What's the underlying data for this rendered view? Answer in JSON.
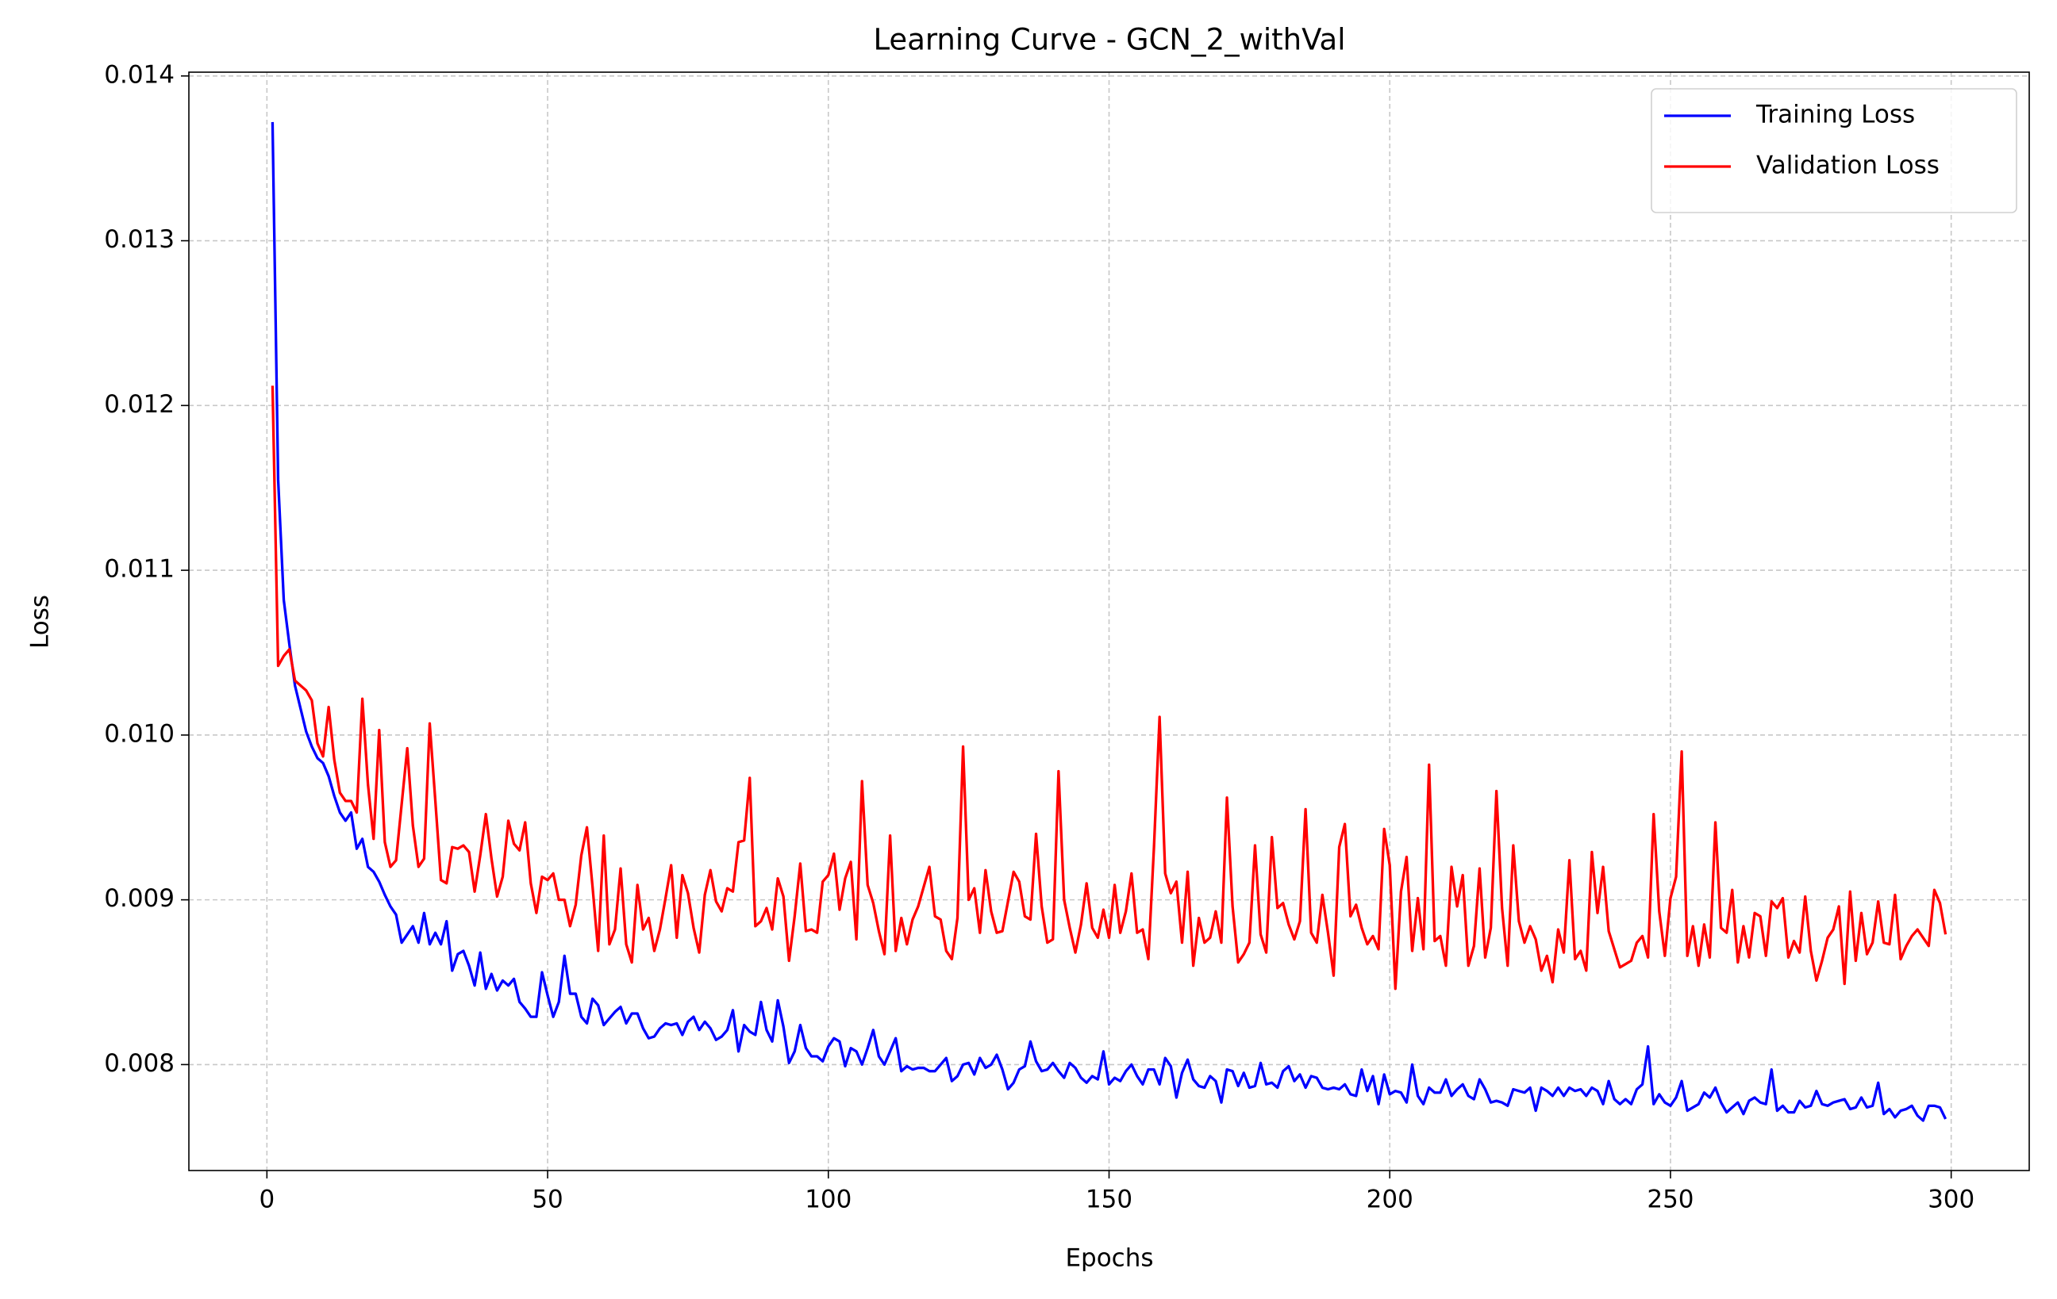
{
  "chart_data": {
    "type": "line",
    "title": "Learning Curve - GCN_2_withVal",
    "xlabel": "Epochs",
    "ylabel": "Loss",
    "x": [
      1,
      2,
      3,
      4,
      5,
      6,
      7,
      8,
      9,
      10,
      11,
      12,
      13,
      14,
      15,
      16,
      17,
      18,
      19,
      20,
      21,
      22,
      23,
      24,
      25,
      26,
      27,
      28,
      29,
      30,
      31,
      32,
      33,
      34,
      35,
      36,
      37,
      38,
      39,
      40,
      41,
      42,
      43,
      44,
      45,
      46,
      47,
      48,
      49,
      50,
      51,
      52,
      53,
      54,
      55,
      56,
      57,
      58,
      59,
      60,
      61,
      62,
      63,
      64,
      65,
      66,
      67,
      68,
      69,
      70,
      71,
      72,
      73,
      74,
      75,
      76,
      77,
      78,
      79,
      80,
      81,
      82,
      83,
      84,
      85,
      86,
      87,
      88,
      89,
      90,
      91,
      92,
      93,
      94,
      95,
      96,
      97,
      98,
      99,
      100,
      101,
      102,
      103,
      104,
      105,
      106,
      107,
      108,
      109,
      110,
      111,
      112,
      113,
      114,
      115,
      116,
      117,
      118,
      119,
      120,
      121,
      122,
      123,
      124,
      125,
      126,
      127,
      128,
      129,
      130,
      131,
      132,
      133,
      134,
      135,
      136,
      137,
      138,
      139,
      140,
      141,
      142,
      143,
      144,
      145,
      146,
      147,
      148,
      149,
      150,
      151,
      152,
      153,
      154,
      155,
      156,
      157,
      158,
      159,
      160,
      161,
      162,
      163,
      164,
      165,
      166,
      167,
      168,
      169,
      170,
      171,
      172,
      173,
      174,
      175,
      176,
      177,
      178,
      179,
      180,
      181,
      182,
      183,
      184,
      185,
      186,
      187,
      188,
      189,
      190,
      191,
      192,
      193,
      194,
      195,
      196,
      197,
      198,
      199,
      200,
      201,
      202,
      203,
      204,
      205,
      206,
      207,
      208,
      209,
      210,
      211,
      212,
      213,
      214,
      215,
      216,
      217,
      218,
      219,
      220,
      221,
      222,
      223,
      224,
      225,
      226,
      227,
      228,
      229,
      230,
      231,
      232,
      233,
      234,
      235,
      236,
      237,
      238,
      239,
      240,
      241,
      242,
      243,
      244,
      245,
      246,
      247,
      248,
      249,
      250,
      251,
      252,
      253,
      254,
      255,
      256,
      257,
      258,
      259,
      260,
      261,
      262,
      263,
      264,
      265,
      266,
      267,
      268,
      269,
      270,
      271,
      272,
      273,
      274,
      275,
      276,
      277,
      278,
      279,
      280,
      281,
      282,
      283,
      284,
      285,
      286,
      287,
      288,
      289,
      290,
      291,
      292,
      293,
      294,
      295,
      296,
      297,
      298,
      299
    ],
    "series": [
      {
        "name": "Training Loss",
        "color": "#0000ff",
        "values": [
          0.01372,
          0.01155,
          0.01082,
          0.01055,
          0.0103,
          0.01016,
          0.01002,
          0.00993,
          0.00986,
          0.00983,
          0.00975,
          0.00963,
          0.00953,
          0.00948,
          0.00953,
          0.00931,
          0.00937,
          0.0092,
          0.00917,
          0.00911,
          0.00903,
          0.00896,
          0.00891,
          0.00874,
          0.00879,
          0.00884,
          0.00874,
          0.00892,
          0.00873,
          0.0088,
          0.00873,
          0.00887,
          0.00857,
          0.00867,
          0.00869,
          0.0086,
          0.00848,
          0.00868,
          0.00846,
          0.00855,
          0.00845,
          0.00851,
          0.00848,
          0.00852,
          0.00838,
          0.00834,
          0.00829,
          0.00829,
          0.00856,
          0.00842,
          0.00829,
          0.00838,
          0.00866,
          0.00843,
          0.00843,
          0.00829,
          0.00825,
          0.0084,
          0.00836,
          0.00824,
          0.00828,
          0.00832,
          0.00835,
          0.00825,
          0.00831,
          0.00831,
          0.00822,
          0.00816,
          0.00817,
          0.00822,
          0.00825,
          0.00824,
          0.00825,
          0.00818,
          0.00826,
          0.00829,
          0.00821,
          0.00826,
          0.00822,
          0.00815,
          0.00817,
          0.00821,
          0.00833,
          0.00808,
          0.00824,
          0.0082,
          0.00818,
          0.00838,
          0.00821,
          0.00814,
          0.00839,
          0.00823,
          0.00801,
          0.00808,
          0.00824,
          0.0081,
          0.00805,
          0.00805,
          0.00802,
          0.00811,
          0.00816,
          0.00814,
          0.00799,
          0.0081,
          0.00808,
          0.008,
          0.0081,
          0.00821,
          0.00805,
          0.008,
          0.00808,
          0.00816,
          0.00796,
          0.00799,
          0.00797,
          0.00798,
          0.00798,
          0.00796,
          0.00796,
          0.008,
          0.00804,
          0.0079,
          0.00793,
          0.008,
          0.00801,
          0.00794,
          0.00804,
          0.00798,
          0.008,
          0.00806,
          0.00797,
          0.00785,
          0.00789,
          0.00797,
          0.00799,
          0.00814,
          0.00802,
          0.00796,
          0.00797,
          0.00801,
          0.00796,
          0.00792,
          0.00801,
          0.00798,
          0.00792,
          0.00789,
          0.00793,
          0.00791,
          0.00808,
          0.00788,
          0.00792,
          0.0079,
          0.00796,
          0.008,
          0.00793,
          0.00788,
          0.00797,
          0.00797,
          0.00788,
          0.00804,
          0.00799,
          0.0078,
          0.00795,
          0.00803,
          0.00791,
          0.00787,
          0.00786,
          0.00793,
          0.0079,
          0.00777,
          0.00797,
          0.00796,
          0.00787,
          0.00795,
          0.00786,
          0.00787,
          0.00801,
          0.00788,
          0.00789,
          0.00786,
          0.00796,
          0.00799,
          0.0079,
          0.00794,
          0.00786,
          0.00793,
          0.00792,
          0.00786,
          0.00785,
          0.00786,
          0.00785,
          0.00788,
          0.00782,
          0.00781,
          0.00797,
          0.00784,
          0.00793,
          0.00776,
          0.00794,
          0.00782,
          0.00784,
          0.00783,
          0.00777,
          0.008,
          0.00781,
          0.00776,
          0.00786,
          0.00783,
          0.00783,
          0.00791,
          0.00781,
          0.00785,
          0.00788,
          0.00781,
          0.00779,
          0.00791,
          0.00785,
          0.00777,
          0.00778,
          0.00777,
          0.00775,
          0.00785,
          0.00784,
          0.00783,
          0.00786,
          0.00772,
          0.00786,
          0.00784,
          0.00781,
          0.00786,
          0.00781,
          0.00786,
          0.00784,
          0.00785,
          0.00781,
          0.00786,
          0.00784,
          0.00776,
          0.0079,
          0.00779,
          0.00776,
          0.00779,
          0.00776,
          0.00785,
          0.00788,
          0.00811,
          0.00776,
          0.00782,
          0.00777,
          0.00775,
          0.0078,
          0.0079,
          0.00772,
          0.00774,
          0.00776,
          0.00783,
          0.0078,
          0.00786,
          0.00777,
          0.00771,
          0.00774,
          0.00777,
          0.0077,
          0.00778,
          0.0078,
          0.00777,
          0.00776,
          0.00797,
          0.00772,
          0.00775,
          0.00771,
          0.00771,
          0.00778,
          0.00774,
          0.00775,
          0.00784,
          0.00776,
          0.00775,
          0.00777,
          0.00778,
          0.00779,
          0.00773,
          0.00774,
          0.0078,
          0.00774,
          0.00775,
          0.00789,
          0.0077,
          0.00773,
          0.00768,
          0.00772,
          0.00773,
          0.00775,
          0.00769,
          0.00766,
          0.00775,
          0.00775,
          0.00774,
          0.00767
        ]
      },
      {
        "name": "Validation Loss",
        "color": "#ff0000",
        "values": [
          0.01212,
          0.01042,
          0.01048,
          0.01052,
          0.01033,
          0.0103,
          0.01027,
          0.01021,
          0.00995,
          0.00987,
          0.01017,
          0.00985,
          0.00965,
          0.0096,
          0.0096,
          0.00953,
          0.01022,
          0.0097,
          0.00937,
          0.01003,
          0.00935,
          0.0092,
          0.00924,
          0.00958,
          0.00992,
          0.00945,
          0.0092,
          0.00925,
          0.01007,
          0.0096,
          0.00912,
          0.0091,
          0.00932,
          0.00931,
          0.00933,
          0.00929,
          0.00905,
          0.00927,
          0.00952,
          0.00925,
          0.00902,
          0.00914,
          0.00948,
          0.00934,
          0.0093,
          0.00947,
          0.0091,
          0.00892,
          0.00914,
          0.00912,
          0.00916,
          0.009,
          0.009,
          0.00884,
          0.00897,
          0.00927,
          0.00944,
          0.00908,
          0.00869,
          0.00939,
          0.00873,
          0.00882,
          0.00919,
          0.00873,
          0.00862,
          0.00909,
          0.00882,
          0.00889,
          0.00869,
          0.00882,
          0.00901,
          0.00921,
          0.00877,
          0.00915,
          0.00904,
          0.00883,
          0.00868,
          0.00903,
          0.00918,
          0.00899,
          0.00893,
          0.00907,
          0.00905,
          0.00935,
          0.00936,
          0.00974,
          0.00884,
          0.00887,
          0.00895,
          0.00882,
          0.00913,
          0.00902,
          0.00863,
          0.0089,
          0.00922,
          0.00881,
          0.00882,
          0.0088,
          0.00911,
          0.00915,
          0.00928,
          0.00894,
          0.00913,
          0.00923,
          0.00876,
          0.00972,
          0.00909,
          0.00898,
          0.00881,
          0.00867,
          0.00939,
          0.00869,
          0.00889,
          0.00873,
          0.00888,
          0.00896,
          0.00908,
          0.0092,
          0.0089,
          0.00888,
          0.00869,
          0.00864,
          0.00889,
          0.00993,
          0.009,
          0.00907,
          0.0088,
          0.00918,
          0.00893,
          0.0088,
          0.00881,
          0.00899,
          0.00917,
          0.00911,
          0.0089,
          0.00888,
          0.0094,
          0.00896,
          0.00874,
          0.00876,
          0.00978,
          0.009,
          0.00883,
          0.00868,
          0.00885,
          0.0091,
          0.00883,
          0.00877,
          0.00894,
          0.00877,
          0.00909,
          0.0088,
          0.00893,
          0.00916,
          0.0088,
          0.00882,
          0.00864,
          0.00932,
          0.01011,
          0.00916,
          0.00904,
          0.00911,
          0.00874,
          0.00917,
          0.0086,
          0.00889,
          0.00874,
          0.00877,
          0.00893,
          0.00874,
          0.00962,
          0.00896,
          0.00862,
          0.00867,
          0.00874,
          0.00933,
          0.00879,
          0.00868,
          0.00938,
          0.00895,
          0.00898,
          0.00885,
          0.00876,
          0.00887,
          0.00955,
          0.0088,
          0.00874,
          0.00903,
          0.0088,
          0.00854,
          0.00932,
          0.00946,
          0.0089,
          0.00897,
          0.00883,
          0.00873,
          0.00878,
          0.0087,
          0.00943,
          0.00921,
          0.00846,
          0.00905,
          0.00926,
          0.00869,
          0.00901,
          0.0087,
          0.00982,
          0.00875,
          0.00878,
          0.0086,
          0.0092,
          0.00896,
          0.00915,
          0.0086,
          0.00872,
          0.00919,
          0.00865,
          0.00883,
          0.00966,
          0.00895,
          0.0086,
          0.00933,
          0.00887,
          0.00874,
          0.00884,
          0.00876,
          0.00857,
          0.00866,
          0.0085,
          0.00882,
          0.00868,
          0.00924,
          0.00864,
          0.00869,
          0.00857,
          0.00929,
          0.00892,
          0.0092,
          0.00881,
          0.0087,
          0.00859,
          0.00861,
          0.00863,
          0.00874,
          0.00878,
          0.00865,
          0.00952,
          0.00893,
          0.00866,
          0.00901,
          0.00914,
          0.0099,
          0.00866,
          0.00884,
          0.0086,
          0.00885,
          0.00865,
          0.00947,
          0.00883,
          0.0088,
          0.00906,
          0.00862,
          0.00884,
          0.00865,
          0.00892,
          0.0089,
          0.00866,
          0.00899,
          0.00895,
          0.00901,
          0.00865,
          0.00875,
          0.00868,
          0.00902,
          0.00869,
          0.00851,
          0.00863,
          0.00877,
          0.00882,
          0.00896,
          0.00849,
          0.00905,
          0.00863,
          0.00892,
          0.00867,
          0.00874,
          0.00899,
          0.00874,
          0.00873,
          0.00903,
          0.00864,
          0.00872,
          0.00878,
          0.00882,
          0.00877,
          0.00872,
          0.00906,
          0.00898,
          0.00879
        ]
      }
    ],
    "xlim": [
      -13.9,
      313.9
    ],
    "ylim": [
      0.007357,
      0.014023
    ],
    "xticks": [
      0,
      50,
      100,
      150,
      200,
      250,
      300
    ],
    "yticks": [
      {
        "value": 0.008,
        "label": "0.008"
      },
      {
        "value": 0.009,
        "label": "0.009"
      },
      {
        "value": 0.01,
        "label": "0.010"
      },
      {
        "value": 0.011,
        "label": "0.011"
      },
      {
        "value": 0.012,
        "label": "0.012"
      },
      {
        "value": 0.013,
        "label": "0.013"
      },
      {
        "value": 0.014,
        "label": "0.014"
      }
    ],
    "grid": true,
    "legend": "upper right"
  }
}
